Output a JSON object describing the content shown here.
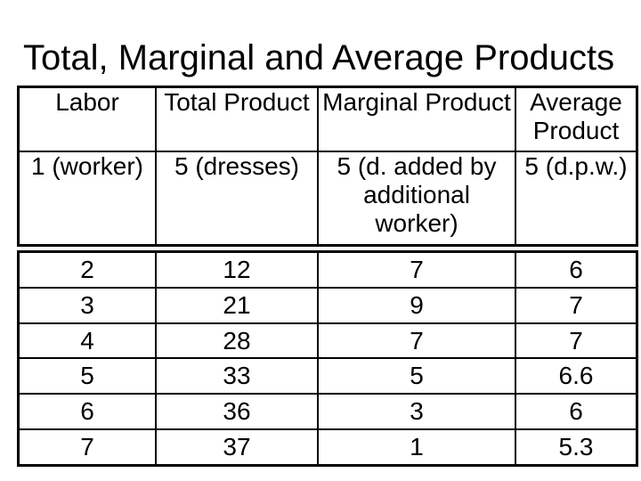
{
  "title": "Total, Marginal and Average Products",
  "table": {
    "headers": [
      "Labor",
      "Total Product",
      "Marginal Product",
      "Average Product"
    ],
    "unit_row": [
      "1 (worker)",
      "5 (dresses)",
      "5 (d. added by additional worker)",
      "5 (d.p.w.)"
    ],
    "rows": [
      [
        "2",
        "12",
        "7",
        "6"
      ],
      [
        "3",
        "21",
        "9",
        "7"
      ],
      [
        "4",
        "28",
        "7",
        "7"
      ],
      [
        "5",
        "33",
        "5",
        "6.6"
      ],
      [
        "6",
        "36",
        "3",
        "6"
      ],
      [
        "7",
        "37",
        "1",
        "5.3"
      ]
    ]
  },
  "colors": {
    "background": "#ffffff",
    "text": "#000000",
    "border": "#000000"
  }
}
